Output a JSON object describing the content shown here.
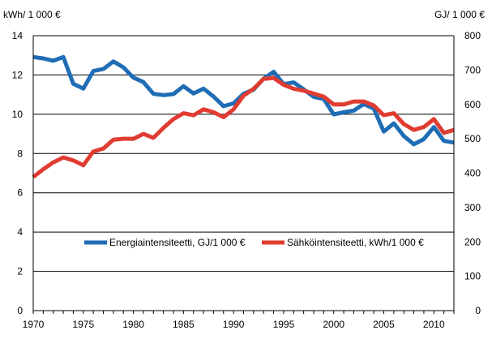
{
  "chart_data": {
    "type": "line",
    "title": "",
    "left_axis_label": "kWh/ 1 000 €",
    "right_axis_label": "GJ/ 1 000 €",
    "xlim": [
      1970,
      2012
    ],
    "x_ticks": [
      "1970",
      "1975",
      "1980",
      "1985",
      "1990",
      "1995",
      "2000",
      "2005",
      "2010"
    ],
    "ylim_left": [
      0,
      14
    ],
    "y_ticks_left": [
      "0",
      "2",
      "4",
      "6",
      "8",
      "10",
      "12",
      "14"
    ],
    "ylim_right": [
      0,
      800
    ],
    "y_ticks_right": [
      "0",
      "100",
      "200",
      "300",
      "400",
      "500",
      "600",
      "700",
      "800"
    ],
    "gridlines": "horizontal",
    "legend_position": "lower-middle",
    "x": [
      1970,
      1971,
      1972,
      1973,
      1974,
      1975,
      1976,
      1977,
      1978,
      1979,
      1980,
      1981,
      1982,
      1983,
      1984,
      1985,
      1986,
      1987,
      1988,
      1989,
      1990,
      1991,
      1992,
      1993,
      1994,
      1995,
      1996,
      1997,
      1998,
      1999,
      2000,
      2001,
      2002,
      2003,
      2004,
      2005,
      2006,
      2007,
      2008,
      2009,
      2010,
      2011,
      2012
    ],
    "series": [
      {
        "name": "Energiaintensiteetti, GJ/1 000 €",
        "axis": "right",
        "color": "#1f6db5",
        "values": [
          738,
          734,
          727,
          738,
          660,
          646,
          697,
          703,
          725,
          708,
          678,
          665,
          631,
          627,
          630,
          653,
          632,
          646,
          623,
          595,
          603,
          631,
          643,
          675,
          695,
          659,
          664,
          644,
          622,
          616,
          571,
          577,
          582,
          601,
          588,
          521,
          545,
          508,
          484,
          499,
          534,
          494,
          489
        ]
      },
      {
        "name": "Sähköintensiteetti, kWh/1 000 €",
        "axis": "left",
        "color": "#e03c31",
        "values": [
          6.8,
          7.2,
          7.55,
          7.8,
          7.65,
          7.4,
          8.1,
          8.25,
          8.7,
          8.75,
          8.75,
          9.0,
          8.8,
          9.3,
          9.75,
          10.05,
          9.95,
          10.25,
          10.1,
          9.85,
          10.25,
          10.95,
          11.3,
          11.8,
          11.85,
          11.5,
          11.3,
          11.2,
          11.05,
          10.9,
          10.5,
          10.5,
          10.65,
          10.65,
          10.45,
          9.95,
          10.05,
          9.5,
          9.2,
          9.35,
          9.75,
          9.05,
          9.2
        ]
      }
    ]
  }
}
